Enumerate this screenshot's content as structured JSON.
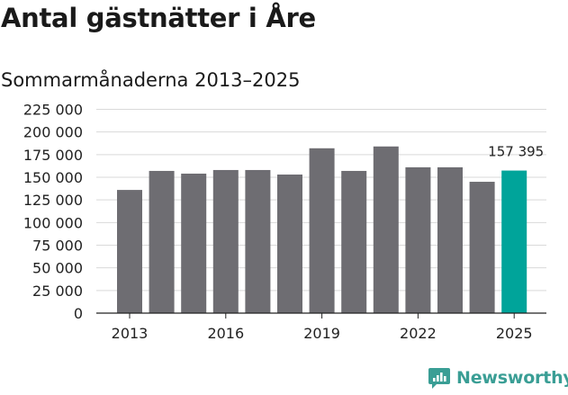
{
  "chart_data": {
    "type": "bar",
    "title": "Antal gästnätter i Åre",
    "subtitle": "Sommarmånaderna 2013–2025",
    "x": [
      2013,
      2014,
      2015,
      2016,
      2017,
      2018,
      2019,
      2020,
      2021,
      2022,
      2023,
      2024,
      2025
    ],
    "values": [
      136000,
      157000,
      154000,
      158000,
      158000,
      153000,
      182000,
      157000,
      184000,
      161000,
      161000,
      145000,
      157395
    ],
    "highlight_index": 12,
    "highlight_label": "157 395",
    "ylim": [
      0,
      225000
    ],
    "yticks": [
      "0",
      "25 000",
      "50 000",
      "75 000",
      "100 000",
      "125 000",
      "150 000",
      "175 000",
      "200 000",
      "225 000"
    ],
    "xticks": [
      "2013",
      "2016",
      "2019",
      "2022",
      "2025"
    ],
    "grid": true,
    "colors": {
      "bar": "#6e6d72",
      "highlight": "#00a49a",
      "grid": "#d9d9d9",
      "axis": "#222222"
    }
  },
  "brand": {
    "name": "Newsworthy",
    "logo": "newsworthy-logo-icon",
    "color": "#3a9e95"
  }
}
